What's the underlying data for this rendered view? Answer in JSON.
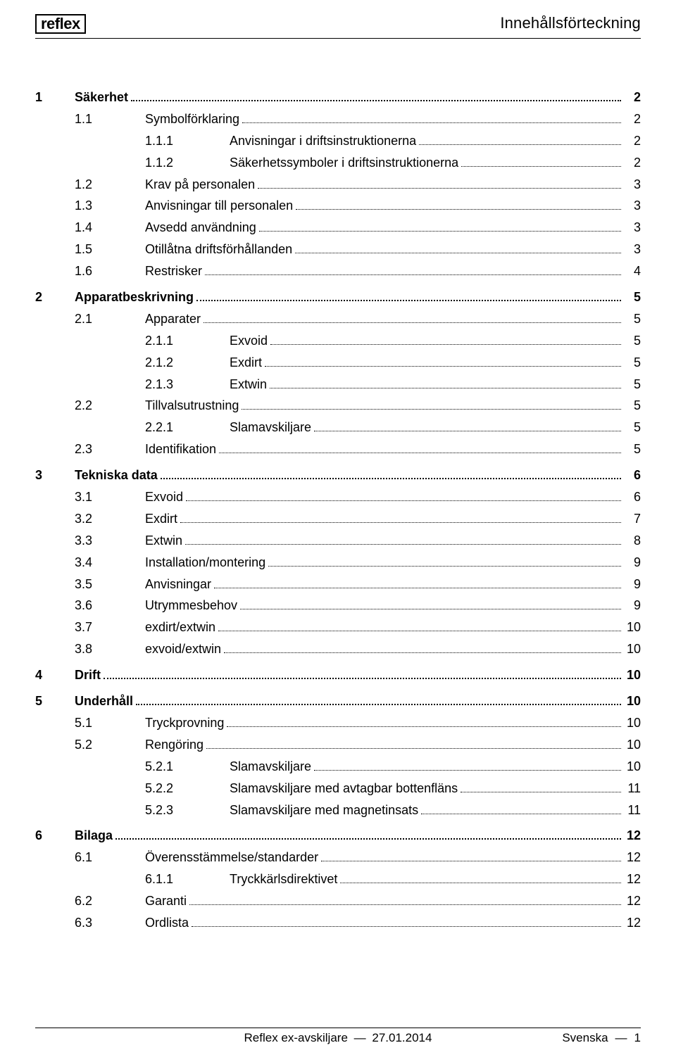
{
  "brand": "reflex",
  "header_title": "Innehållsförteckning",
  "footer": {
    "doc": "Reflex ex-avskiljare",
    "date": "27.01.2014",
    "lang": "Svenska",
    "page": "1"
  },
  "toc": [
    {
      "level": 1,
      "num": "1",
      "label": "Säkerhet",
      "page": "2"
    },
    {
      "level": 2,
      "num": "1.1",
      "label": "Symbolförklaring",
      "page": "2"
    },
    {
      "level": 3,
      "num": "1.1.1",
      "label": "Anvisningar i driftsinstruktionerna",
      "page": "2"
    },
    {
      "level": 3,
      "num": "1.1.2",
      "label": "Säkerhetssymboler i driftsinstruktionerna",
      "page": "2"
    },
    {
      "level": 2,
      "num": "1.2",
      "label": "Krav på personalen",
      "page": "3"
    },
    {
      "level": 2,
      "num": "1.3",
      "label": "Anvisningar till personalen",
      "page": "3"
    },
    {
      "level": 2,
      "num": "1.4",
      "label": "Avsedd användning",
      "page": "3"
    },
    {
      "level": 2,
      "num": "1.5",
      "label": "Otillåtna driftsförhållanden",
      "page": "3"
    },
    {
      "level": 2,
      "num": "1.6",
      "label": "Restrisker",
      "page": "4"
    },
    {
      "level": 1,
      "num": "2",
      "label": "Apparatbeskrivning",
      "page": "5"
    },
    {
      "level": 2,
      "num": "2.1",
      "label": "Apparater",
      "page": "5"
    },
    {
      "level": 3,
      "num": "2.1.1",
      "label": "Exvoid",
      "page": "5"
    },
    {
      "level": 3,
      "num": "2.1.2",
      "label": "Exdirt",
      "page": "5"
    },
    {
      "level": 3,
      "num": "2.1.3",
      "label": "Extwin",
      "page": "5"
    },
    {
      "level": 2,
      "num": "2.2",
      "label": "Tillvalsutrustning",
      "page": "5"
    },
    {
      "level": 3,
      "num": "2.2.1",
      "label": "Slamavskiljare",
      "page": "5"
    },
    {
      "level": 2,
      "num": "2.3",
      "label": "Identifikation",
      "page": "5"
    },
    {
      "level": 1,
      "num": "3",
      "label": "Tekniska data",
      "page": "6"
    },
    {
      "level": 2,
      "num": "3.1",
      "label": "Exvoid",
      "page": "6"
    },
    {
      "level": 2,
      "num": "3.2",
      "label": "Exdirt",
      "page": "7"
    },
    {
      "level": 2,
      "num": "3.3",
      "label": "Extwin",
      "page": "8"
    },
    {
      "level": 2,
      "num": "3.4",
      "label": "Installation/montering",
      "page": "9"
    },
    {
      "level": 2,
      "num": "3.5",
      "label": "Anvisningar",
      "page": "9"
    },
    {
      "level": 2,
      "num": "3.6",
      "label": "Utrymmesbehov",
      "page": "9"
    },
    {
      "level": 2,
      "num": "3.7",
      "label": "exdirt/extwin",
      "page": "10"
    },
    {
      "level": 2,
      "num": "3.8",
      "label": "exvoid/extwin",
      "page": "10"
    },
    {
      "level": 1,
      "num": "4",
      "label": "Drift",
      "page": "10"
    },
    {
      "level": 1,
      "num": "5",
      "label": "Underhåll",
      "page": "10"
    },
    {
      "level": 2,
      "num": "5.1",
      "label": "Tryckprovning",
      "page": "10"
    },
    {
      "level": 2,
      "num": "5.2",
      "label": "Rengöring",
      "page": "10"
    },
    {
      "level": 3,
      "num": "5.2.1",
      "label": "Slamavskiljare",
      "page": "10"
    },
    {
      "level": 3,
      "num": "5.2.2",
      "label": "Slamavskiljare med avtagbar bottenfläns",
      "page": "11"
    },
    {
      "level": 3,
      "num": "5.2.3",
      "label": "Slamavskiljare med magnetinsats",
      "page": "11"
    },
    {
      "level": 1,
      "num": "6",
      "label": "Bilaga",
      "page": "12"
    },
    {
      "level": 2,
      "num": "6.1",
      "label": "Överensstämmelse/standarder",
      "page": "12"
    },
    {
      "level": 3,
      "num": "6.1.1",
      "label": "Tryckkärlsdirektivet",
      "page": "12"
    },
    {
      "level": 2,
      "num": "6.2",
      "label": "Garanti",
      "page": "12"
    },
    {
      "level": 2,
      "num": "6.3",
      "label": "Ordlista",
      "page": "12"
    }
  ]
}
